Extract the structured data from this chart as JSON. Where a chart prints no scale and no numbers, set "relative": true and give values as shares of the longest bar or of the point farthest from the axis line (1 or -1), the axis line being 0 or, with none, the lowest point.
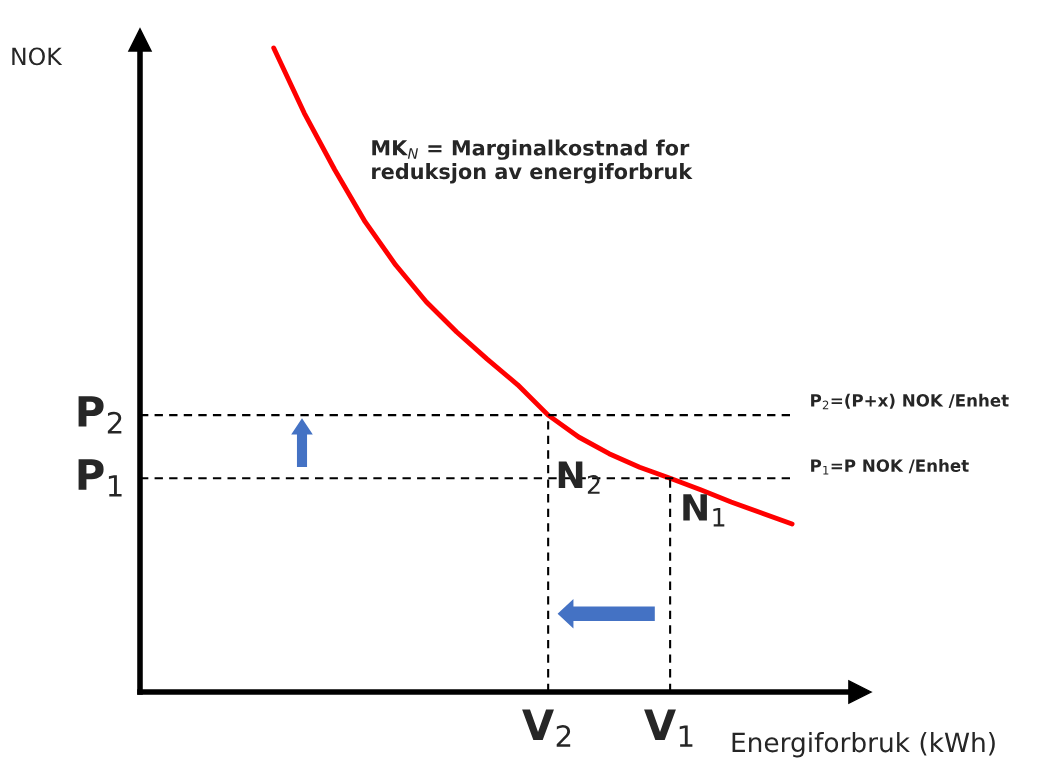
{
  "chart_data": {
    "type": "line",
    "relative": true,
    "xlabel": "Energiforbruk (kWh)",
    "categories": [
      null,
      null,
      null,
      null,
      null,
      null,
      null,
      null,
      null,
      null,
      null,
      null,
      null,
      null,
      null,
      null,
      null,
      null
    ],
    "series": [
      {
        "color": "#ff0000",
        "values": [
          1.0,
          0.899,
          0.811,
          0.73,
          0.663,
          0.606,
          0.559,
          0.517,
          0.477,
          0.43,
          0.396,
          0.37,
          0.349,
          0.332,
          0.314,
          0.295,
          0.278,
          0.261
        ]
      }
    ],
    "ref_lines": [
      {
        "axis": "y",
        "value": 0.43,
        "label": "P$_{2}$",
        "line_style": "dashed",
        "color": "#000000"
      },
      {
        "axis": "y",
        "value": 0.332,
        "label": "P$_{1}$",
        "line_style": "dashed",
        "color": "#000000"
      }
    ],
    "annotations": [
      "MK$_{N}$ = Marginalkostnad for\nreduksjon av energiforbruk",
      "N$_{2}$",
      "N$_{1}$",
      "P$_{2}$=(P+x) NOK /Enhet",
      "P$_{1}$=P NOK /Enhet",
      "V$_{2}$",
      "V$_{1}$",
      "NOK"
    ]
  }
}
